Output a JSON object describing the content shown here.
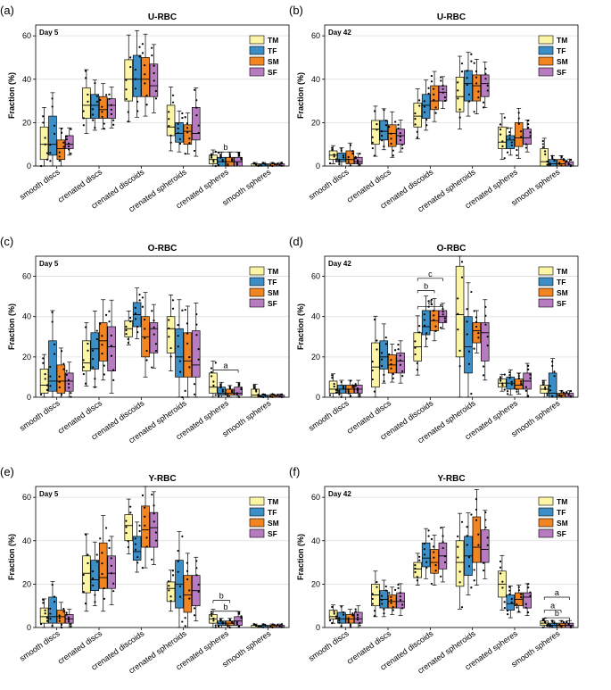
{
  "figure": {
    "category_labels": [
      "smooth discs",
      "crenated discs",
      "crenated discoids",
      "crenated spheroids",
      "crenated spheres",
      "smooth spheres"
    ],
    "yticks": [
      "0",
      "20",
      "40",
      "60"
    ]
  },
  "colors": {
    "TM": "#fdf5a6",
    "TF": "#3b8fc6",
    "SM": "#f28522",
    "SF": "#b77bbf"
  },
  "chart_data": [
    {
      "type": "box",
      "panel": "(a)",
      "title": "U-RBC",
      "day": "Day 5",
      "ylabel": "Fraction (%)",
      "ylim": [
        0,
        65
      ],
      "categories": [
        "smooth discs",
        "crenated discs",
        "crenated discoids",
        "crenated spheroids",
        "crenated spheres",
        "smooth spheres"
      ],
      "legend": [
        "TM",
        "TF",
        "SM",
        "SF"
      ],
      "series": [
        {
          "name": "TM",
          "boxes": [
            [
              3,
              18,
              10
            ],
            [
              22,
              36,
              28
            ],
            [
              30,
              49,
              40
            ],
            [
              14,
              28,
              18
            ],
            [
              1,
              5,
              3
            ],
            [
              0,
              1,
              0
            ]
          ]
        },
        {
          "name": "TF",
          "boxes": [
            [
              5,
              23,
              10
            ],
            [
              22,
              33,
              28
            ],
            [
              32,
              51,
              40
            ],
            [
              11,
              20,
              15
            ],
            [
              0,
              4,
              2
            ],
            [
              0,
              1,
              0
            ]
          ]
        },
        {
          "name": "SM",
          "boxes": [
            [
              3,
              12,
              8
            ],
            [
              22,
              32,
              26
            ],
            [
              32,
              50,
              40
            ],
            [
              10,
              19,
              16
            ],
            [
              0,
              4,
              2
            ],
            [
              0,
              1,
              0
            ]
          ]
        },
        {
          "name": "SF",
          "boxes": [
            [
              8,
              14,
              10
            ],
            [
              22,
              31,
              28
            ],
            [
              32,
              47,
              37
            ],
            [
              12,
              27,
              15
            ],
            [
              0,
              4,
              2
            ],
            [
              0,
              1,
              0
            ]
          ]
        }
      ],
      "annotations": [
        {
          "text": "b",
          "category": "crenated spheres",
          "level": 6.5
        }
      ]
    },
    {
      "type": "box",
      "panel": "(b)",
      "title": "U-RBC",
      "day": "Day 42",
      "ylabel": "Fraction (%)",
      "ylim": [
        0,
        65
      ],
      "categories": [
        "smooth discs",
        "crenated discs",
        "crenated discoids",
        "crenated spheroids",
        "crenated spheres",
        "smooth spheres"
      ],
      "legend": [
        "TM",
        "TF",
        "SM",
        "SF"
      ],
      "series": [
        {
          "name": "TM",
          "boxes": [
            [
              3,
              7,
              5
            ],
            [
              10,
              21,
              17
            ],
            [
              18,
              29,
              23
            ],
            [
              25,
              41,
              32
            ],
            [
              8,
              18,
              11
            ],
            [
              0,
              8,
              2
            ]
          ]
        },
        {
          "name": "TF",
          "boxes": [
            [
              2,
              6,
              3
            ],
            [
              12,
              21,
              16
            ],
            [
              22,
              33,
              28
            ],
            [
              30,
              44,
              38
            ],
            [
              8,
              14,
              12
            ],
            [
              0,
              3,
              1
            ]
          ]
        },
        {
          "name": "SM",
          "boxes": [
            [
              1,
              7,
              3
            ],
            [
              9,
              19,
              15
            ],
            [
              26,
              37,
              30
            ],
            [
              30,
              42,
              37
            ],
            [
              9,
              20,
              13
            ],
            [
              0,
              3,
              1
            ]
          ]
        },
        {
          "name": "SF",
          "boxes": [
            [
              1,
              4,
              2
            ],
            [
              10,
              17,
              14
            ],
            [
              30,
              37,
              34
            ],
            [
              32,
              42,
              38
            ],
            [
              10,
              17,
              13
            ],
            [
              0,
              2,
              0
            ]
          ]
        }
      ],
      "annotations": []
    },
    {
      "type": "box",
      "panel": "(c)",
      "title": "O-RBC",
      "day": "Day 5",
      "ylabel": "Fraction (%)",
      "ylim": [
        0,
        70
      ],
      "categories": [
        "smooth discs",
        "crenated discs",
        "crenated discoids",
        "crenated spheroids",
        "crenated spheres",
        "smooth spheres"
      ],
      "legend": [
        "TM",
        "TF",
        "SM",
        "SF"
      ],
      "series": [
        {
          "name": "TM",
          "boxes": [
            [
              2,
              14,
              6
            ],
            [
              13,
              28,
              17
            ],
            [
              30,
              38,
              34
            ],
            [
              22,
              40,
              34
            ],
            [
              2,
              12,
              5
            ],
            [
              0,
              4,
              1
            ]
          ]
        },
        {
          "name": "TF",
          "boxes": [
            [
              3,
              28,
              8
            ],
            [
              14,
              32,
              24
            ],
            [
              35,
              47,
              41
            ],
            [
              10,
              34,
              20
            ],
            [
              1,
              5,
              2
            ],
            [
              0,
              1,
              0
            ]
          ]
        },
        {
          "name": "SM",
          "boxes": [
            [
              2,
              16,
              8
            ],
            [
              18,
              37,
              28
            ],
            [
              20,
              40,
              30
            ],
            [
              10,
              32,
              18
            ],
            [
              1,
              4,
              2
            ],
            [
              0,
              1,
              0
            ]
          ]
        },
        {
          "name": "SF",
          "boxes": [
            [
              3,
              12,
              8
            ],
            [
              13,
              35,
              25
            ],
            [
              22,
              37,
              34
            ],
            [
              10,
              33,
              16
            ],
            [
              1,
              5,
              2
            ],
            [
              0,
              1,
              0
            ]
          ]
        }
      ],
      "annotations": [
        {
          "text": "a",
          "category": "crenated spheres",
          "level": 13.5
        }
      ]
    },
    {
      "type": "box",
      "panel": "(d)",
      "title": "O-RBC",
      "day": "Day 42",
      "ylabel": "Fraction (%)",
      "ylim": [
        0,
        70
      ],
      "categories": [
        "smooth discs",
        "crenated discs",
        "crenated discoids",
        "crenated spheroids",
        "crenated spheres",
        "smooth spheres"
      ],
      "legend": [
        "TM",
        "TF",
        "SM",
        "SF"
      ],
      "series": [
        {
          "name": "TM",
          "boxes": [
            [
              2,
              8,
              4
            ],
            [
              5,
              27,
              15
            ],
            [
              18,
              32,
              25
            ],
            [
              20,
              65,
              41
            ],
            [
              5,
              9,
              7
            ],
            [
              2,
              6,
              4
            ]
          ]
        },
        {
          "name": "TF",
          "boxes": [
            [
              2,
              6,
              4
            ],
            [
              14,
              28,
              20
            ],
            [
              31,
              43,
              35
            ],
            [
              12,
              40,
              25
            ],
            [
              4,
              10,
              7
            ],
            [
              0,
              12,
              2
            ]
          ]
        },
        {
          "name": "SM",
          "boxes": [
            [
              2,
              6,
              4
            ],
            [
              12,
              21,
              16
            ],
            [
              33,
              43,
              38
            ],
            [
              27,
              37,
              33
            ],
            [
              4,
              9,
              6
            ],
            [
              0,
              2,
              1
            ]
          ]
        },
        {
          "name": "SF",
          "boxes": [
            [
              2,
              6,
              4
            ],
            [
              12,
              22,
              18
            ],
            [
              37,
              43,
              40
            ],
            [
              18,
              37,
              32
            ],
            [
              4,
              12,
              8
            ],
            [
              0,
              2,
              0
            ]
          ]
        }
      ],
      "annotations": [
        {
          "text": "a",
          "category": "crenated discoids",
          "level": 45
        },
        {
          "text": "b",
          "category": "crenated discoids",
          "level": 53
        },
        {
          "text": "c",
          "category": "crenated discoids",
          "level": 59
        }
      ]
    },
    {
      "type": "box",
      "panel": "(e)",
      "title": "Y-RBC",
      "day": "Day 5",
      "ylabel": "Fraction (%)",
      "ylim": [
        0,
        65
      ],
      "categories": [
        "smooth discs",
        "crenated discs",
        "crenated discoids",
        "crenated spheroids",
        "crenated spheres",
        "smooth spheres"
      ],
      "legend": [
        "TM",
        "TF",
        "SM",
        "SF"
      ],
      "series": [
        {
          "name": "TM",
          "boxes": [
            [
              2,
              9,
              5
            ],
            [
              16,
              33,
              25
            ],
            [
              40,
              52,
              47
            ],
            [
              12,
              21,
              18
            ],
            [
              2,
              6,
              4
            ],
            [
              0,
              1,
              0
            ]
          ]
        },
        {
          "name": "TF",
          "boxes": [
            [
              2,
              14,
              5
            ],
            [
              17,
              31,
              22
            ],
            [
              31,
              42,
              35
            ],
            [
              9,
              31,
              20
            ],
            [
              1,
              3,
              2
            ],
            [
              0,
              1,
              0
            ]
          ]
        },
        {
          "name": "SM",
          "boxes": [
            [
              2,
              8,
              5
            ],
            [
              18,
              39,
              23
            ],
            [
              37,
              56,
              45
            ],
            [
              7,
              24,
              15
            ],
            [
              1,
              3,
              2
            ],
            [
              0,
              1,
              0
            ]
          ]
        },
        {
          "name": "SF",
          "boxes": [
            [
              2,
              6,
              4
            ],
            [
              18,
              33,
              25
            ],
            [
              37,
              53,
              46
            ],
            [
              10,
              24,
              17
            ],
            [
              1,
              5,
              3
            ],
            [
              0,
              1,
              0
            ]
          ]
        }
      ],
      "annotations": [
        {
          "text": "b",
          "category": "crenated spheres",
          "level": 7.5
        },
        {
          "text": "b",
          "category": "crenated spheres",
          "level": 12.5
        }
      ]
    },
    {
      "type": "box",
      "panel": "(f)",
      "title": "Y-RBC",
      "day": "Day 42",
      "ylabel": "Fraction (%)",
      "ylim": [
        0,
        65
      ],
      "categories": [
        "smooth discs",
        "crenated discs",
        "crenated discoids",
        "crenated spheroids",
        "crenated spheres",
        "smooth spheres"
      ],
      "legend": [
        "TM",
        "TF",
        "SM",
        "SF"
      ],
      "series": [
        {
          "name": "TM",
          "boxes": [
            [
              4,
              8,
              5
            ],
            [
              10,
              20,
              15
            ],
            [
              23,
              30,
              27
            ],
            [
              19,
              40,
              30
            ],
            [
              14,
              26,
              20
            ],
            [
              1,
              3,
              2
            ]
          ]
        },
        {
          "name": "TF",
          "boxes": [
            [
              2,
              7,
              4
            ],
            [
              9,
              17,
              13
            ],
            [
              28,
              39,
              32
            ],
            [
              24,
              42,
              33
            ],
            [
              8,
              15,
              11
            ],
            [
              0,
              2,
              1
            ]
          ]
        },
        {
          "name": "SM",
          "boxes": [
            [
              2,
              6,
              4
            ],
            [
              9,
              15,
              12
            ],
            [
              25,
              36,
              30
            ],
            [
              30,
              51,
              37
            ],
            [
              10,
              16,
              13
            ],
            [
              0,
              2,
              1
            ]
          ]
        },
        {
          "name": "SF",
          "boxes": [
            [
              2,
              7,
              4
            ],
            [
              9,
              16,
              12
            ],
            [
              27,
              39,
              33
            ],
            [
              30,
              45,
              36
            ],
            [
              9,
              16,
              14
            ],
            [
              0,
              2,
              1
            ]
          ]
        }
      ],
      "annotations": [
        {
          "text": "b",
          "category": "smooth spheres",
          "level": 4.5
        },
        {
          "text": "a",
          "category": "smooth spheres",
          "level": 8
        },
        {
          "text": "a",
          "category": "smooth spheres",
          "level": 14
        }
      ]
    }
  ]
}
